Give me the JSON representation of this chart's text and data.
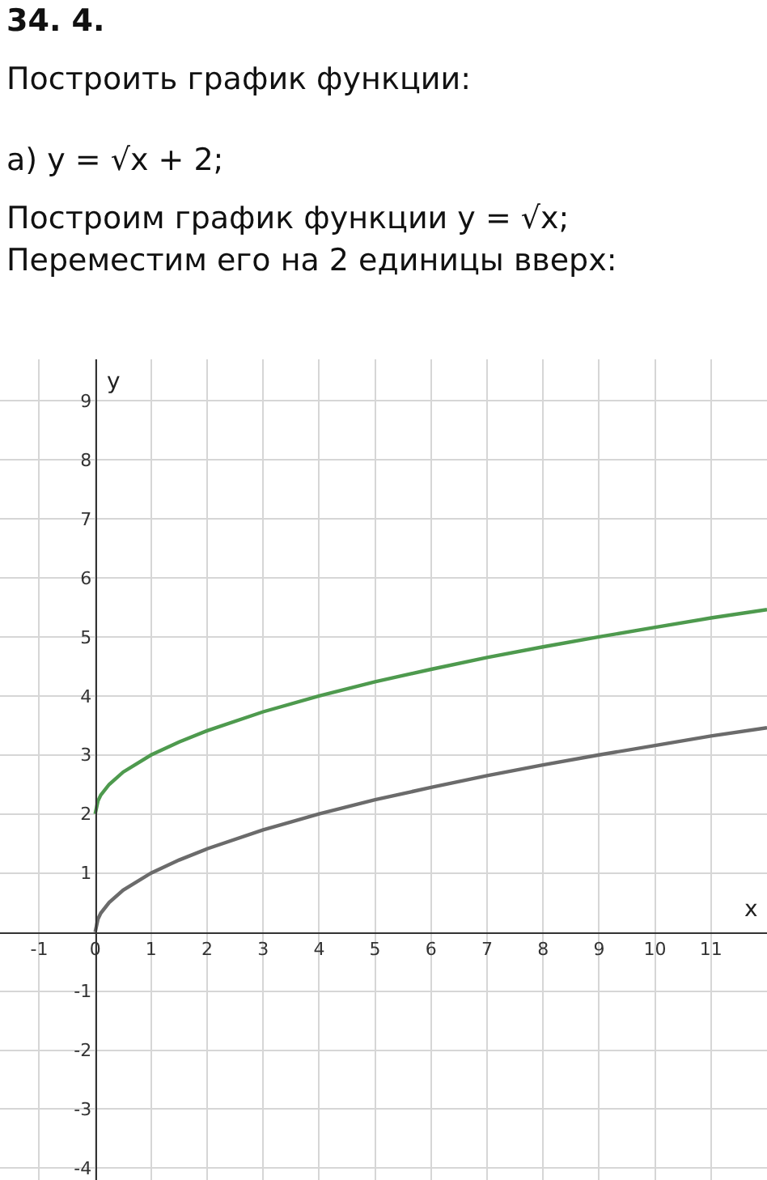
{
  "chart_data": {
    "type": "line",
    "title": "34. 4.",
    "annotations": [
      "Построить график функции:",
      "а) y = √x + 2;",
      "Построим график функции y = √x;",
      "Переместим его на 2 единицы вверх:"
    ],
    "xlabel": "x",
    "ylabel": "y",
    "x": [
      0,
      0.05,
      0.1,
      0.25,
      0.5,
      1,
      1.5,
      2,
      3,
      4,
      5,
      6,
      7,
      8,
      9,
      10,
      11,
      12
    ],
    "series": [
      {
        "color": "#4e9a4e",
        "values": [
          2,
          2.22,
          2.32,
          2.5,
          2.71,
          3,
          3.22,
          3.41,
          3.73,
          4,
          4.24,
          4.45,
          4.65,
          4.83,
          5,
          5.16,
          5.32,
          5.46
        ]
      },
      {
        "color": "#6b6b6b",
        "values": [
          0,
          0.22,
          0.32,
          0.5,
          0.71,
          1,
          1.22,
          1.41,
          1.73,
          2,
          2.24,
          2.45,
          2.65,
          2.83,
          3,
          3.16,
          3.32,
          3.46
        ]
      }
    ],
    "xlim": [
      -1.7,
      12
    ],
    "ylim": [
      -4.2,
      9.7
    ],
    "xticks": [
      -1,
      0,
      1,
      2,
      3,
      4,
      5,
      6,
      7,
      8,
      9,
      10,
      11
    ],
    "yticks": [
      -4,
      -3,
      -2,
      -1,
      1,
      2,
      3,
      4,
      5,
      6,
      7,
      8,
      9
    ],
    "grid": true,
    "marker": "none",
    "line_style": "solid"
  }
}
